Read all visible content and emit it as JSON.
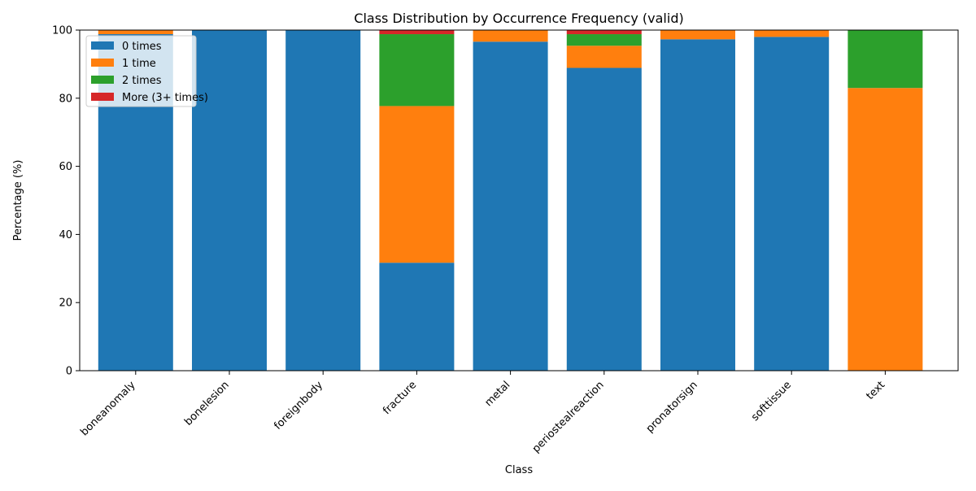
{
  "chart_data": {
    "type": "bar",
    "stacked": true,
    "title": "Class Distribution by Occurrence Frequency (valid)",
    "xlabel": "Class",
    "ylabel": "Percentage (%)",
    "ylim": [
      0,
      100
    ],
    "yticks": [
      0,
      20,
      40,
      60,
      80,
      100
    ],
    "grid": false,
    "legend_position": "top-left",
    "categories": [
      "boneanomaly",
      "bonelesion",
      "foreignbody",
      "fracture",
      "metal",
      "periostealreaction",
      "pronatorsign",
      "softtissue",
      "text"
    ],
    "series": [
      {
        "name": "0 times",
        "color": "#1f77b4",
        "values": [
          98.8,
          100,
          100,
          31.7,
          96.6,
          88.9,
          97.3,
          98.0,
          0
        ]
      },
      {
        "name": "1 time",
        "color": "#ff7f0e",
        "values": [
          1.2,
          0,
          0,
          46.0,
          3.4,
          6.5,
          2.7,
          2.0,
          83.0
        ]
      },
      {
        "name": "2 times",
        "color": "#2ca02c",
        "values": [
          0,
          0,
          0,
          21.1,
          0,
          3.4,
          0,
          0,
          17.0
        ]
      },
      {
        "name": "More (3+ times)",
        "color": "#d62728",
        "values": [
          0,
          0,
          0,
          1.2,
          0,
          1.2,
          0,
          0,
          0
        ]
      }
    ]
  }
}
